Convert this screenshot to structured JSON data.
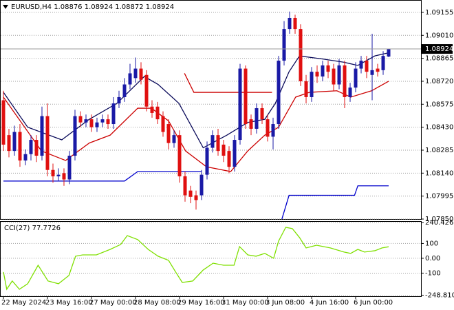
{
  "chart_data": [
    {
      "type": "candlestick",
      "title": "EURUSD,H4  1.08876 1.08924 1.08872 1.08924",
      "categories": [
        "22 May 2024",
        null,
        null,
        null,
        null,
        null,
        null,
        null,
        "23 May 16:00",
        null,
        null,
        null,
        null,
        null,
        null,
        null,
        "27 May 00:00",
        null,
        null,
        null,
        null,
        null,
        null,
        null,
        "28 May 08:00",
        null,
        null,
        null,
        null,
        null,
        null,
        null,
        "29 May 16:00",
        null,
        null,
        null,
        null,
        null,
        null,
        null,
        "31 May 00:00",
        null,
        null,
        null,
        null,
        null,
        null,
        null,
        "3 Jun 08:00",
        null,
        null,
        null,
        null,
        null,
        null,
        null,
        "4 Jun 16:00",
        null,
        null,
        null,
        null,
        null,
        null,
        null,
        "6 Jun 00:00",
        null,
        null,
        null,
        null,
        null,
        null
      ],
      "ohlc": {
        "open": [
          1.086,
          1.0838,
          1.0828,
          1.084,
          1.0822,
          1.0826,
          1.0835,
          1.0825,
          1.085,
          1.0816,
          1.0812,
          1.0814,
          1.081,
          1.0825,
          1.085,
          1.0846,
          1.0848,
          1.0843,
          1.0846,
          1.0848,
          1.0845,
          1.0858,
          1.0862,
          1.087,
          1.0874,
          1.088,
          1.0876,
          1.0856,
          1.0856,
          1.085,
          1.0845,
          1.0833,
          1.0838,
          1.0812,
          1.0803,
          1.08,
          1.08,
          1.0813,
          1.083,
          1.0838,
          1.0832,
          1.0828,
          1.0818,
          1.0835,
          1.088,
          1.0848,
          1.0842,
          1.0855,
          1.0848,
          1.0837,
          1.0845,
          1.0885,
          1.0905,
          1.0912,
          1.0905,
          1.0872,
          1.0862,
          1.0878,
          1.0875,
          1.0882,
          1.088,
          1.087,
          1.0882,
          1.0862,
          1.0868,
          1.088,
          1.0885,
          1.0876,
          1.088,
          1.0879,
          1.08876
        ],
        "high": [
          1.0866,
          1.0842,
          1.0844,
          1.0845,
          1.0829,
          1.0838,
          1.0838,
          1.0856,
          1.0858,
          1.082,
          1.0817,
          1.0817,
          1.0828,
          1.0854,
          1.0853,
          1.0851,
          1.0851,
          1.0849,
          1.0851,
          1.0851,
          1.0862,
          1.0866,
          1.0874,
          1.0883,
          1.0887,
          1.0884,
          1.0879,
          1.086,
          1.0859,
          1.0853,
          1.0848,
          1.0841,
          1.0841,
          1.0815,
          1.0806,
          1.0803,
          1.0816,
          1.0834,
          1.0841,
          1.0842,
          1.0835,
          1.0831,
          1.0838,
          1.0883,
          1.0882,
          1.0851,
          1.0858,
          1.0858,
          1.0851,
          1.0849,
          1.0888,
          1.091,
          1.0916,
          1.0914,
          1.0908,
          1.0876,
          1.0881,
          1.0882,
          1.0885,
          1.0885,
          1.0883,
          1.0886,
          1.0885,
          1.0871,
          1.0884,
          1.0888,
          1.0888,
          1.0902,
          1.0883,
          1.0891,
          1.08924
        ],
        "low": [
          1.0828,
          1.0824,
          1.0825,
          1.0818,
          1.0819,
          1.0822,
          1.0821,
          1.0822,
          1.0812,
          1.0808,
          1.0809,
          1.0806,
          1.0807,
          1.0822,
          1.0843,
          1.0843,
          1.084,
          1.084,
          1.0843,
          1.0842,
          1.0842,
          1.0855,
          1.0859,
          1.0867,
          1.0871,
          1.087,
          1.0853,
          1.0849,
          1.0845,
          1.0837,
          1.0829,
          1.083,
          1.0808,
          1.0796,
          1.0795,
          1.0791,
          1.0797,
          1.081,
          1.0827,
          1.0825,
          1.0821,
          1.0814,
          1.0815,
          1.0832,
          1.0842,
          1.0838,
          1.0839,
          1.0845,
          1.0834,
          1.0829,
          1.0842,
          1.0882,
          1.0902,
          1.0902,
          1.0869,
          1.0858,
          1.0859,
          1.0871,
          1.0872,
          1.0874,
          1.0866,
          1.0867,
          1.0855,
          1.0859,
          1.0865,
          1.0877,
          1.0874,
          1.086,
          1.0875,
          1.0876,
          1.08872
        ],
        "close": [
          1.0832,
          1.0828,
          1.084,
          1.0822,
          1.0826,
          1.0835,
          1.0825,
          1.085,
          1.0816,
          1.0812,
          1.0813,
          1.081,
          1.0825,
          1.085,
          1.0846,
          1.0848,
          1.0843,
          1.0846,
          1.0848,
          1.0845,
          1.0858,
          1.0862,
          1.087,
          1.0877,
          1.088,
          1.0873,
          1.0856,
          1.0852,
          1.0848,
          1.084,
          1.0833,
          1.0838,
          1.0812,
          1.08,
          1.0799,
          1.0797,
          1.0813,
          1.083,
          1.0838,
          1.0828,
          1.0825,
          1.0818,
          1.0835,
          1.088,
          1.0845,
          1.0842,
          1.0855,
          1.0848,
          1.0837,
          1.0845,
          1.0885,
          1.0905,
          1.0912,
          1.0905,
          1.0872,
          1.0862,
          1.0878,
          1.0875,
          1.0882,
          1.0878,
          1.087,
          1.0882,
          1.0862,
          1.0868,
          1.088,
          1.0885,
          1.0878,
          1.0879,
          1.0878,
          1.0888,
          1.08924
        ]
      },
      "up_color": "#1a1aa6",
      "down_color": "#e01010",
      "overlays": [
        {
          "color": "#0a0a5a",
          "x": [
            0,
            4.4,
            10.6,
            15.6,
            20.6,
            25.6,
            28.1,
            31.9,
            36.3,
            40.6,
            44.4,
            47.5,
            49.4,
            51.9,
            53.8,
            58.1,
            61.9,
            64.4,
            67.5,
            70
          ],
          "values": [
            1.0865,
            1.0843,
            1.0835,
            1.0848,
            1.0858,
            1.0875,
            1.087,
            1.0858,
            1.083,
            1.0838,
            1.0846,
            1.0848,
            1.0858,
            1.0878,
            1.0888,
            1.0886,
            1.0884,
            1.0882,
            1.0888,
            1.089
          ]
        },
        {
          "color": "#cc0000",
          "x": [
            0,
            6.9,
            11.3,
            15.6,
            19.4,
            24.4,
            26.9,
            30,
            33.1,
            36.9,
            41.3,
            44.4,
            47.5,
            50,
            53.1,
            55.6,
            60.6,
            63.1,
            66.9,
            70
          ],
          "values": [
            1.0862,
            1.0828,
            1.0822,
            1.0833,
            1.0838,
            1.0855,
            1.0855,
            1.0847,
            1.0828,
            1.0818,
            1.0815,
            1.0828,
            1.0838,
            1.0843,
            1.0862,
            1.0865,
            1.0866,
            1.0862,
            1.0866,
            1.0872
          ]
        },
        {
          "color": "#0000cc",
          "x": [
            0,
            22,
            24.4,
            36,
            43,
            50.6,
            51.9,
            63.8,
            64.4,
            70
          ],
          "values": [
            1.0809,
            1.0809,
            1.0815,
            1.0815,
            null,
            1.0785,
            1.08,
            1.08,
            1.0806,
            1.0806
          ]
        },
        {
          "color": "#cc0000",
          "x": [
            32.9,
            34.6,
            48.8
          ],
          "values": [
            1.0877,
            1.0865,
            1.0865
          ]
        }
      ],
      "last_price": 1.08924,
      "ylim": [
        1.0785,
        1.0922
      ],
      "yticks": [
        1.09155,
        {
          "value": 1.0901,
          "label": "1.09010"
        },
        1.08865,
        {
          "value": 1.0872,
          "label": "1.08720"
        },
        1.08575,
        {
          "value": 1.0843,
          "label": "1.08430"
        },
        1.08285,
        {
          "value": 1.0814,
          "label": "1.08140"
        },
        1.07995,
        {
          "value": 1.0785,
          "label": "1.07850"
        }
      ],
      "grid": true
    },
    {
      "type": "line",
      "title": "CCI(27) 77.7726",
      "series": [
        {
          "color": "#7fe000",
          "x": [
            0,
            0.6,
            1.6,
            2.9,
            4.4,
            6.3,
            8.1,
            10,
            11.9,
            13.1,
            14.4,
            16.9,
            19.4,
            21.3,
            22.5,
            24.4,
            26.3,
            28.1,
            30,
            31.3,
            32.5,
            34.4,
            36.3,
            38.1,
            40,
            41.9,
            42.9,
            44.4,
            45.9,
            47.5,
            49.1,
            50,
            51.3,
            52.5,
            53.8,
            55,
            56.9,
            59.4,
            61.9,
            63.1,
            64.4,
            65.6,
            67.5,
            68.8,
            70
          ],
          "values": [
            -93,
            -209,
            -153,
            -209,
            -172,
            -47,
            -153,
            -172,
            -116,
            14,
            23,
            23,
            60,
            93,
            153,
            126,
            60,
            14,
            -14,
            -93,
            -163,
            -153,
            -79,
            -33,
            -47,
            -47,
            79,
            23,
            14,
            33,
            0,
            116,
            209,
            200,
            140,
            70,
            88,
            70,
            42,
            33,
            60,
            42,
            51,
            70,
            77.7726
          ]
        }
      ],
      "ylim": [
        -256,
        246
      ],
      "yticks": [
        240.4268,
        100,
        {
          "value": 0,
          "label": "0.00"
        },
        -100,
        -248.8102
      ],
      "grid": true
    }
  ]
}
